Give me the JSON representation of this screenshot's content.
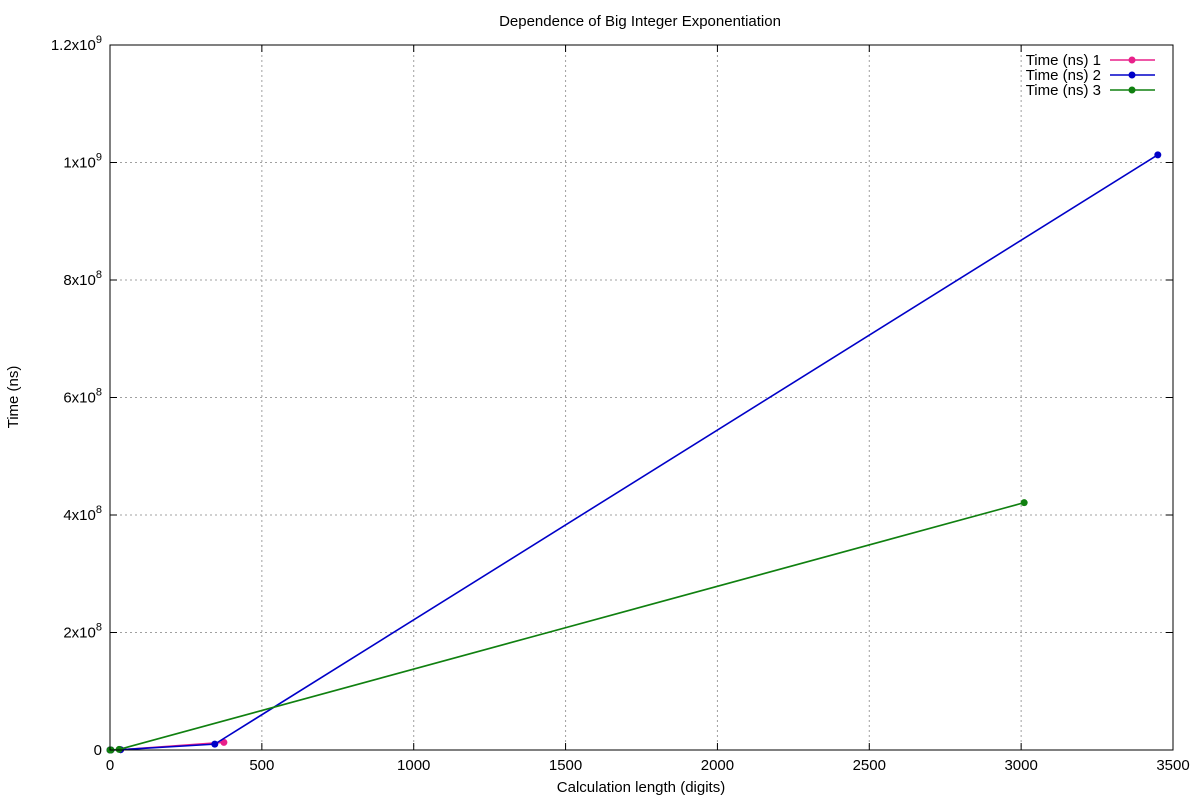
{
  "chart_data": {
    "type": "line",
    "title": "Dependence of Big Integer Exponentiation",
    "xlabel": "Calculation length (digits)",
    "ylabel": "Time (ns)",
    "xlim": [
      0,
      3500
    ],
    "ylim": [
      0,
      1200000000
    ],
    "x_ticks": [
      {
        "value": 0,
        "label": "0"
      },
      {
        "value": 500,
        "label": "500"
      },
      {
        "value": 1000,
        "label": "1000"
      },
      {
        "value": 1500,
        "label": "1500"
      },
      {
        "value": 2000,
        "label": "2000"
      },
      {
        "value": 2500,
        "label": "2500"
      },
      {
        "value": 3000,
        "label": "3000"
      },
      {
        "value": 3500,
        "label": "3500"
      }
    ],
    "y_ticks": [
      {
        "value": 0,
        "mantissa": "0",
        "exponent": ""
      },
      {
        "value": 200000000,
        "mantissa": "2x10",
        "exponent": "8"
      },
      {
        "value": 400000000,
        "mantissa": "4x10",
        "exponent": "8"
      },
      {
        "value": 600000000,
        "mantissa": "6x10",
        "exponent": "8"
      },
      {
        "value": 800000000,
        "mantissa": "8x10",
        "exponent": "8"
      },
      {
        "value": 1000000000,
        "mantissa": "1x10",
        "exponent": "9"
      },
      {
        "value": 1200000000,
        "mantissa": "1.2x10",
        "exponent": "9"
      }
    ],
    "grid": true,
    "legend_position": "top-right",
    "series": [
      {
        "name": "Time (ns) 1",
        "color": "#e8208a",
        "points": [
          [
            0,
            0
          ],
          [
            3,
            5000
          ],
          [
            35,
            500000
          ],
          [
            375,
            13000000
          ]
        ]
      },
      {
        "name": "Time (ns) 2",
        "color": "#0000c8",
        "points": [
          [
            0,
            0
          ],
          [
            3,
            5000
          ],
          [
            35,
            500000
          ],
          [
            345,
            10000000
          ],
          [
            3450,
            1013000000
          ]
        ]
      },
      {
        "name": "Time (ns) 3",
        "color": "#108010",
        "points": [
          [
            0,
            0
          ],
          [
            3,
            5000
          ],
          [
            30,
            1000000
          ],
          [
            3010,
            421000000
          ]
        ]
      }
    ]
  }
}
